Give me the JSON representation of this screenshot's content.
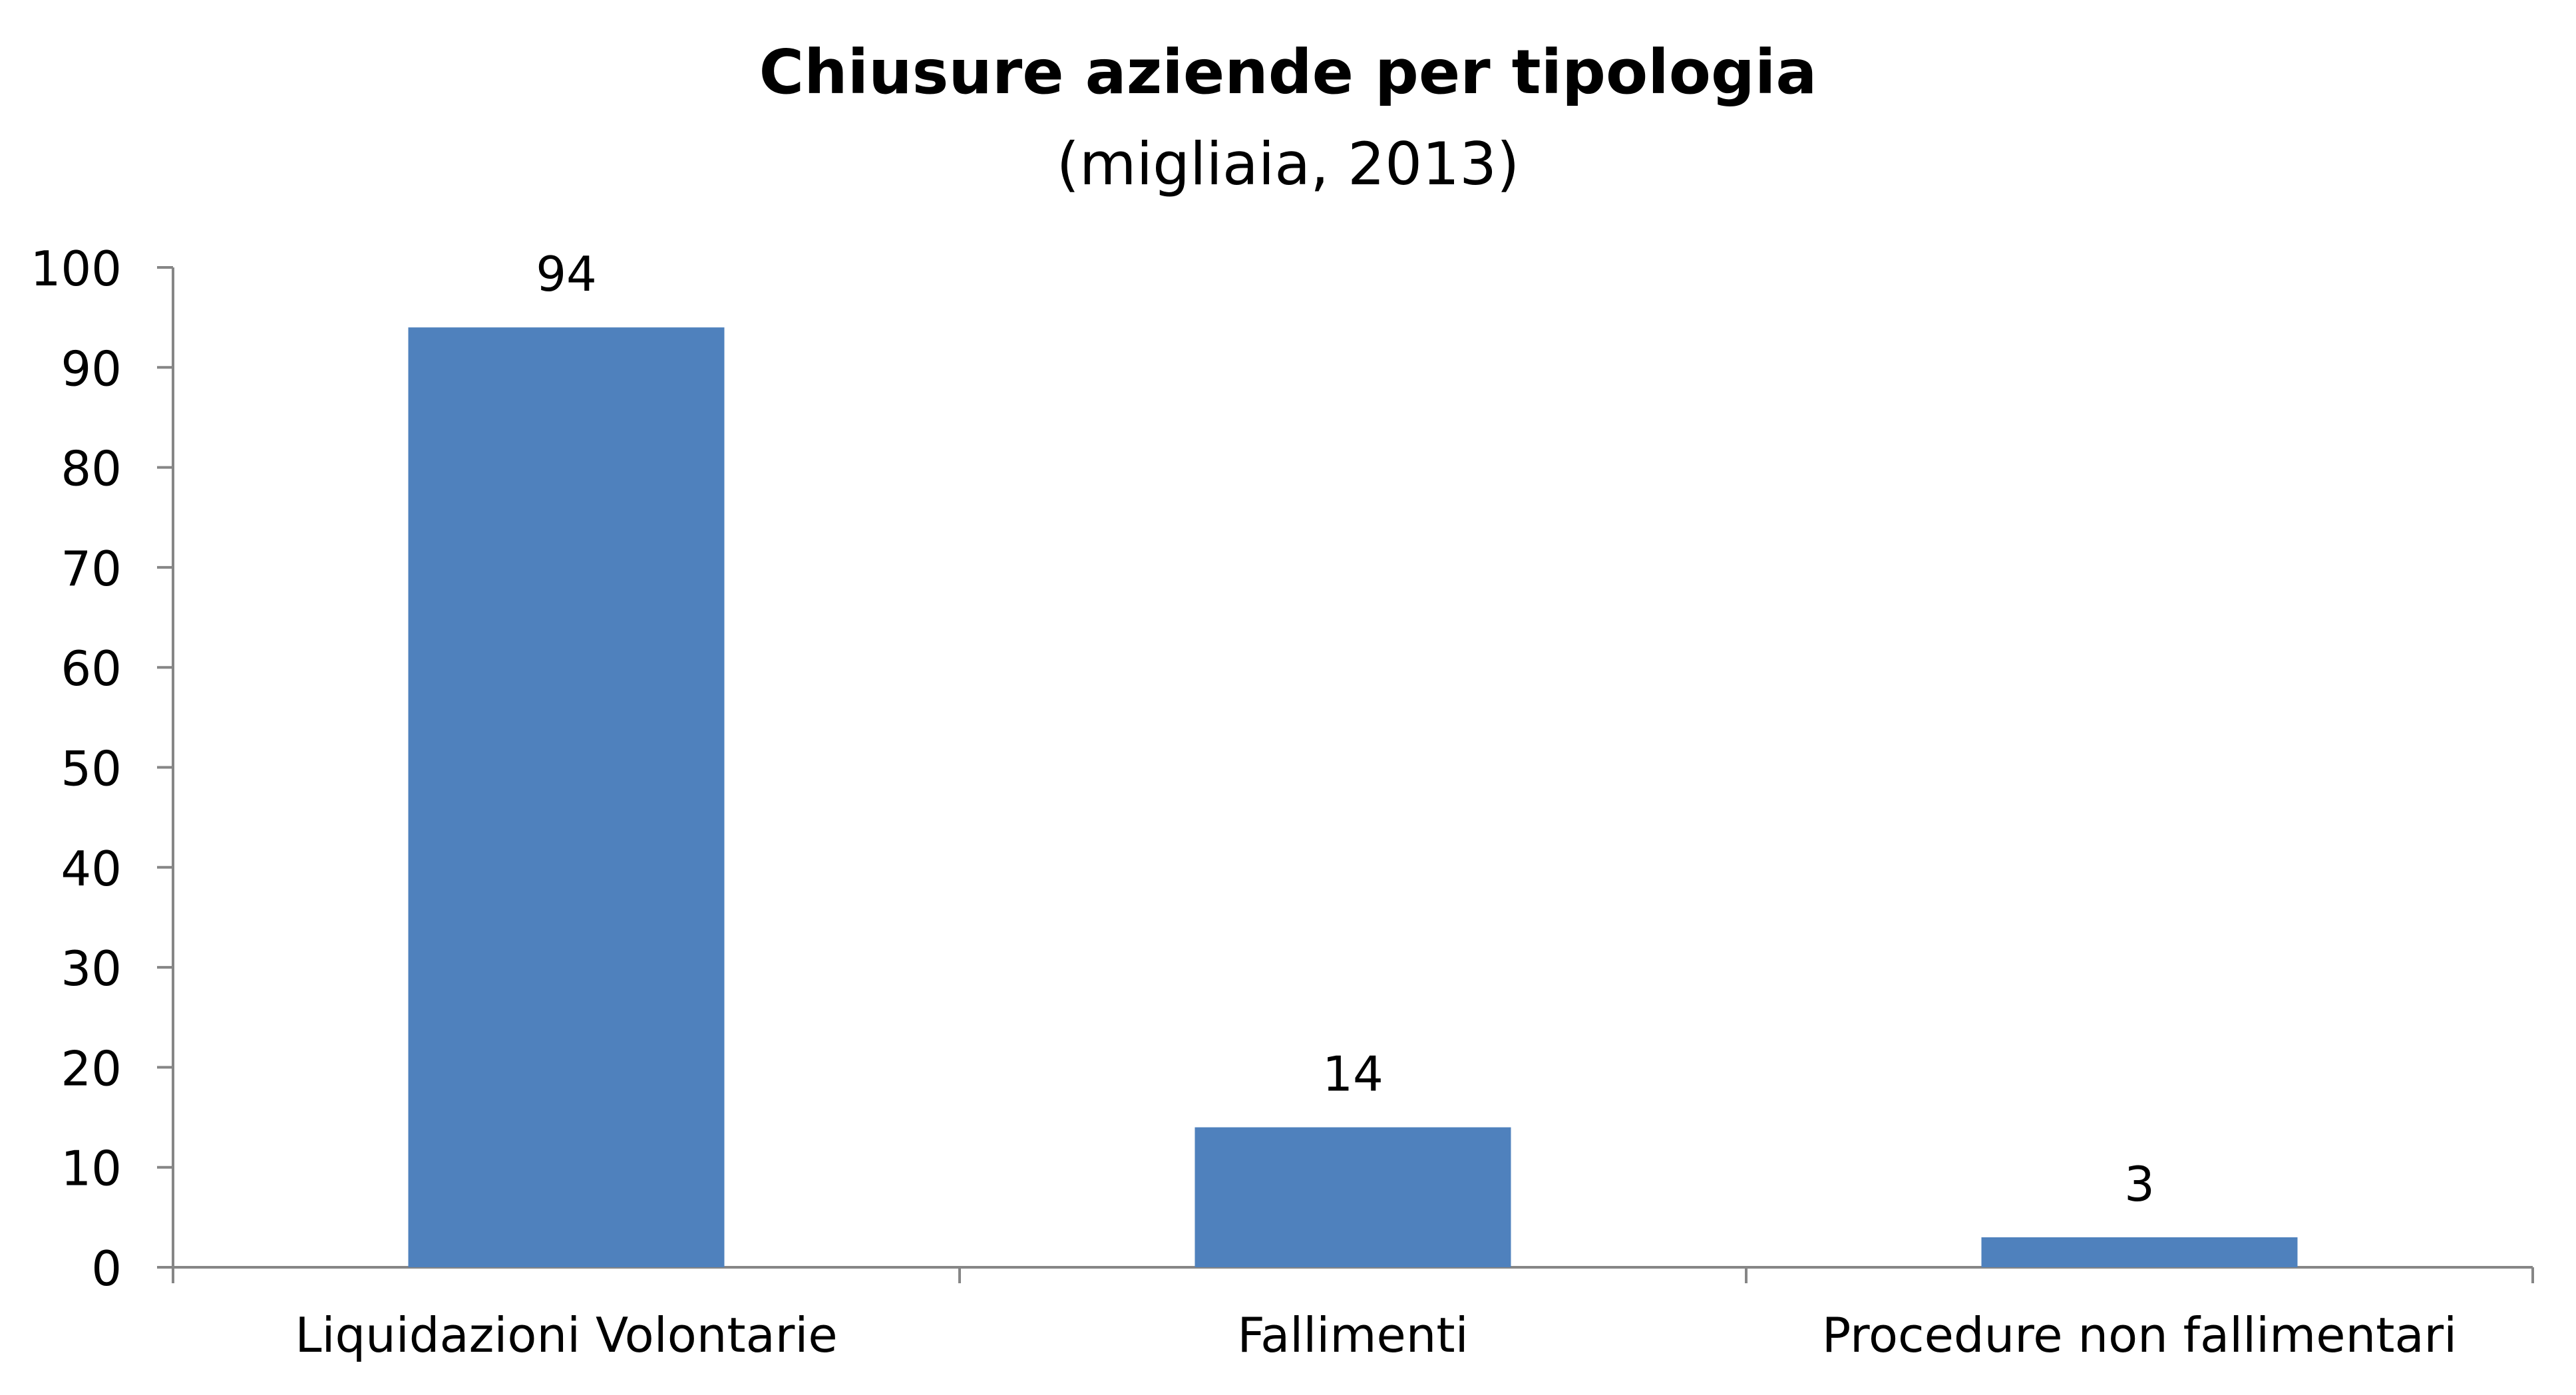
{
  "chart_data": {
    "type": "bar",
    "title": "Chiusure aziende per tipologia",
    "subtitle": "(migliaia, 2013)",
    "categories": [
      "Liquidazioni Volontarie",
      "Fallimenti",
      "Procedure non fallimentari"
    ],
    "values": [
      94,
      14,
      3
    ],
    "data_labels": [
      "94",
      "14",
      "3"
    ],
    "ylim": [
      0,
      100
    ],
    "yticks": [
      0,
      10,
      20,
      30,
      40,
      50,
      60,
      70,
      80,
      90,
      100
    ],
    "xlabel": "",
    "ylabel": "",
    "grid": false,
    "legend": "none",
    "bar_color": "#4f81bd",
    "axis_color": "#868686"
  }
}
